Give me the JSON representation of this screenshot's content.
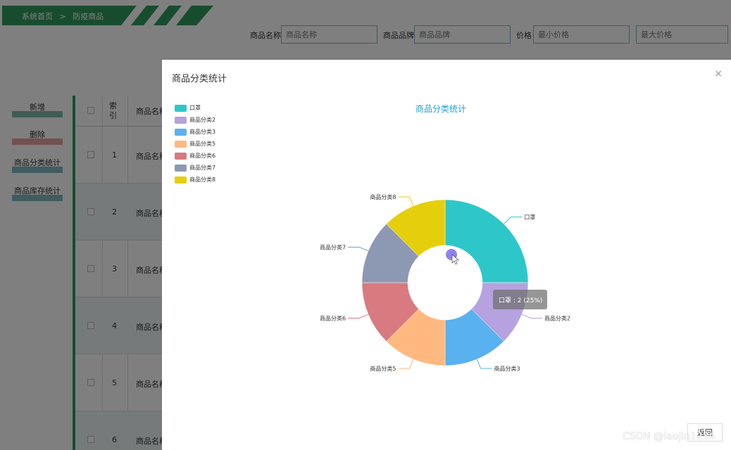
{
  "breadcrumb": {
    "home": "系统首页",
    "sep": ">",
    "current": "防疫商品"
  },
  "search": {
    "name_label": "商品名称",
    "name_placeholder": "商品名称",
    "brand_label": "商品品牌",
    "brand_placeholder": "商品品牌",
    "price_label": "价格",
    "min_placeholder": "最小价格",
    "max_placeholder": "最大价格"
  },
  "sidebar": {
    "add": "新增",
    "delete": "删除",
    "category_stats": "商品分类统计",
    "stock_stats": "商品库存统计"
  },
  "table": {
    "headers": {
      "index": "索引",
      "name": "商品名称"
    },
    "rows": [
      {
        "index": "1",
        "name": "商品名称"
      },
      {
        "index": "2",
        "name": "商品名称"
      },
      {
        "index": "3",
        "name": "商品名称"
      },
      {
        "index": "4",
        "name": "商品名称"
      },
      {
        "index": "5",
        "name": "商品名称"
      },
      {
        "index": "6",
        "name": "商品名称"
      }
    ]
  },
  "modal": {
    "title": "商品分类统计",
    "close": "×",
    "return_label": "返回"
  },
  "chart_data": {
    "type": "pie",
    "title": "商品分类统计",
    "donut": true,
    "legend_position": "top-left",
    "categories": [
      "口罩",
      "商品分类2",
      "商品分类3",
      "商品分类5",
      "商品分类6",
      "商品分类7",
      "商品分类8"
    ],
    "values": [
      2,
      1,
      1,
      1,
      1,
      1,
      1
    ],
    "colors": [
      "#2ec7c9",
      "#b6a2de",
      "#5ab1ef",
      "#ffb980",
      "#d87a80",
      "#8d98b3",
      "#e5cf0d"
    ],
    "tooltip": "口罩 : 2 (25%)"
  },
  "watermark": "CSDN @laojin1234"
}
